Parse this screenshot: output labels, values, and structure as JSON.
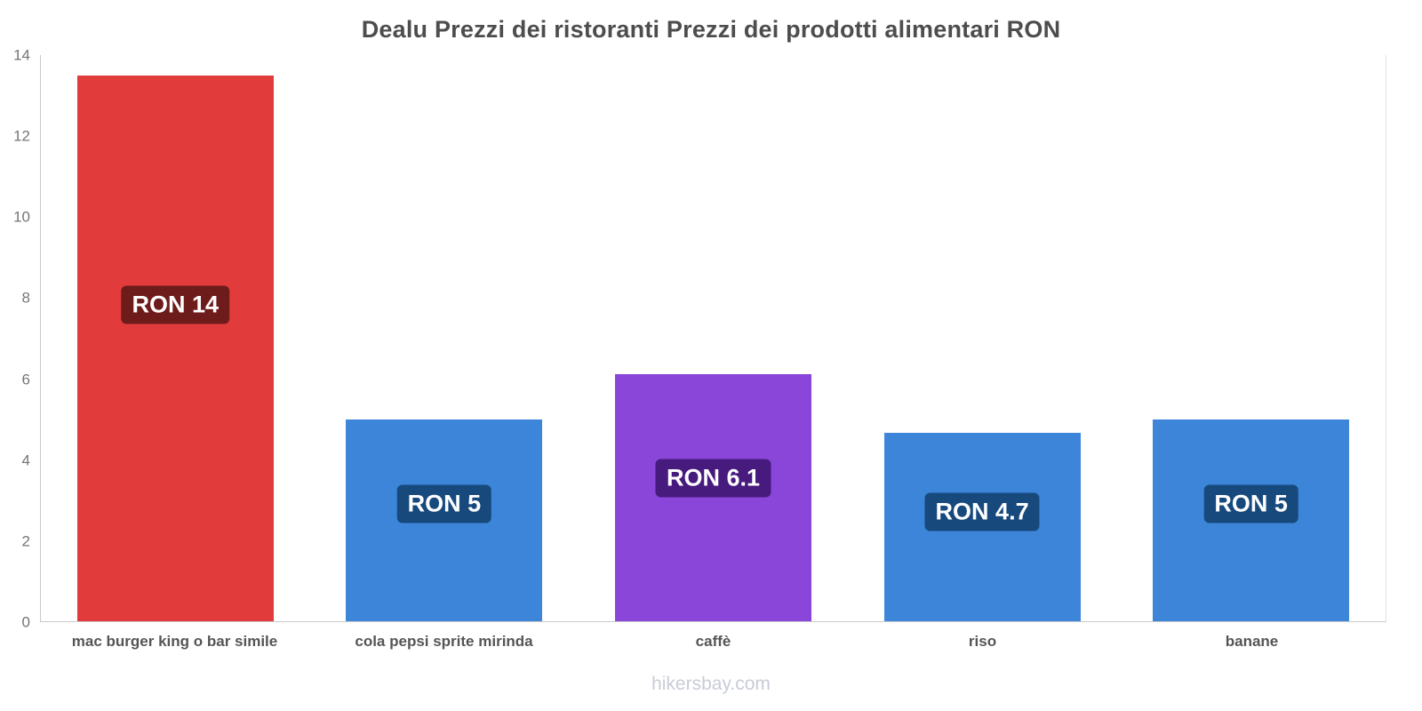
{
  "footer": "hikersbay.com",
  "chart_data": {
    "type": "bar",
    "title": "Dealu Prezzi dei ristoranti Prezzi dei prodotti alimentari RON",
    "categories": [
      "mac burger king o bar simile",
      "cola pepsi sprite mirinda",
      "caffè",
      "riso",
      "banane"
    ],
    "values": [
      13.5,
      5,
      6.1,
      4.65,
      5
    ],
    "value_labels": [
      "RON 14",
      "RON 5",
      "RON 6.1",
      "RON 4.7",
      "RON 5"
    ],
    "bar_colors": [
      "#e23b3b",
      "#3d85d9",
      "#8a46d8",
      "#3d85d9",
      "#3d85d9"
    ],
    "label_bg_colors": [
      "#6e1b1b",
      "#17497d",
      "#471a7e",
      "#17497d",
      "#17497d"
    ],
    "xlabel": "",
    "ylabel": "",
    "ylim": [
      0,
      14
    ],
    "yticks": [
      0,
      2,
      4,
      6,
      8,
      10,
      12,
      14
    ],
    "grid": false,
    "legend": false,
    "currency": "RON"
  }
}
